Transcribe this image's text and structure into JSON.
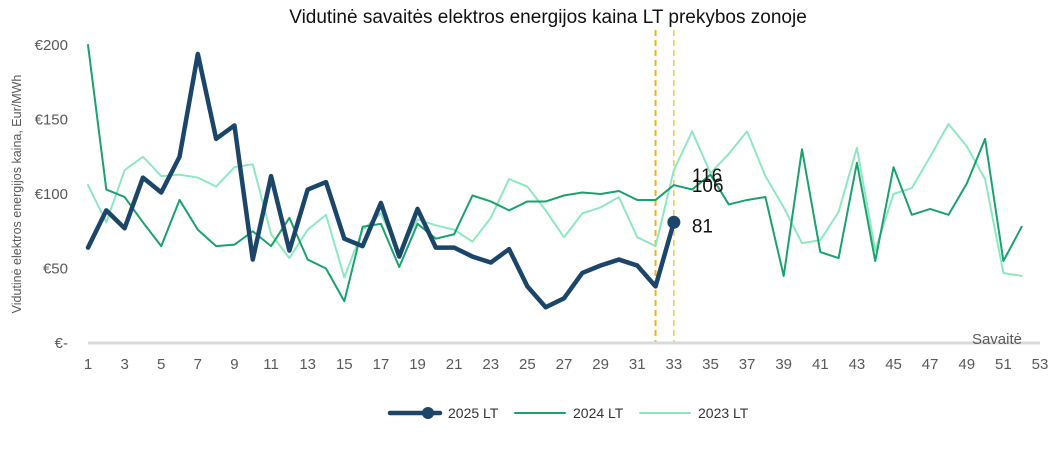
{
  "chart_data": {
    "type": "line",
    "title": "Vidutinė savaitės elektros energijos kaina LT prekybos zonoje",
    "ylabel": "Vidutinė elektros energijos kaina, Eur/MWh",
    "xlabel": "Savaitė",
    "ylim": [
      0,
      200
    ],
    "xlim": [
      1,
      53
    ],
    "y_ticks": [
      "€-",
      "€50",
      "€100",
      "€150",
      "€200"
    ],
    "y_tick_values": [
      0,
      50,
      100,
      150,
      200
    ],
    "x_ticks": [
      "1",
      "3",
      "5",
      "7",
      "9",
      "11",
      "13",
      "15",
      "17",
      "19",
      "21",
      "23",
      "25",
      "27",
      "29",
      "31",
      "33",
      "35",
      "37",
      "39",
      "41",
      "43",
      "45",
      "47",
      "49",
      "51",
      "53"
    ],
    "x_tick_values": [
      1,
      3,
      5,
      7,
      9,
      11,
      13,
      15,
      17,
      19,
      21,
      23,
      25,
      27,
      29,
      31,
      33,
      35,
      37,
      39,
      41,
      43,
      45,
      47,
      49,
      51,
      53
    ],
    "grid": false,
    "legend_position": "bottom",
    "vertical_markers": [
      32,
      33
    ],
    "series": [
      {
        "name": "2025 LT",
        "color": "#1b4569",
        "x": [
          1,
          2,
          3,
          4,
          5,
          6,
          7,
          8,
          9,
          10,
          11,
          12,
          13,
          14,
          15,
          16,
          17,
          18,
          19,
          20,
          21,
          22,
          23,
          24,
          25,
          26,
          27,
          28,
          29,
          30,
          31,
          32,
          33
        ],
        "values": [
          64,
          89,
          77,
          111,
          101,
          125,
          194,
          137,
          146,
          56,
          112,
          62,
          103,
          108,
          70,
          65,
          94,
          58,
          90,
          64,
          64,
          58,
          54,
          63,
          38,
          24,
          30,
          47,
          52,
          56,
          52,
          38,
          81
        ],
        "end_label": "81"
      },
      {
        "name": "2024 LT",
        "color": "#1aa26d",
        "x": [
          1,
          2,
          3,
          4,
          5,
          6,
          7,
          8,
          9,
          10,
          11,
          12,
          13,
          14,
          15,
          16,
          17,
          18,
          19,
          20,
          21,
          22,
          23,
          24,
          25,
          26,
          27,
          28,
          29,
          30,
          31,
          32,
          33,
          34,
          35,
          36,
          37,
          38,
          39,
          40,
          41,
          42,
          43,
          44,
          45,
          46,
          47,
          48,
          49,
          50,
          51,
          52
        ],
        "values": [
          200,
          103,
          98,
          81,
          65,
          96,
          76,
          65,
          66,
          75,
          65,
          84,
          56,
          50,
          28,
          78,
          80,
          51,
          80,
          70,
          73,
          99,
          95,
          89,
          95,
          95,
          99,
          101,
          100,
          102,
          96,
          96,
          106,
          103,
          113,
          93,
          96,
          98,
          45,
          130,
          61,
          57,
          121,
          55,
          118,
          86,
          90,
          86,
          107,
          137,
          55,
          78
        ],
        "end_label": "106"
      },
      {
        "name": "2023 LT",
        "color": "#8de8c2",
        "x": [
          1,
          2,
          3,
          4,
          5,
          6,
          7,
          8,
          9,
          10,
          11,
          12,
          13,
          14,
          15,
          16,
          17,
          18,
          19,
          20,
          21,
          22,
          23,
          24,
          25,
          26,
          27,
          28,
          29,
          30,
          31,
          32,
          33,
          34,
          35,
          36,
          37,
          38,
          39,
          40,
          41,
          42,
          43,
          44,
          45,
          46,
          47,
          48,
          49,
          50,
          51,
          52
        ],
        "values": [
          106,
          81,
          116,
          125,
          112,
          113,
          111,
          105,
          118,
          120,
          73,
          57,
          76,
          86,
          44,
          76,
          87,
          60,
          83,
          79,
          76,
          68,
          84,
          110,
          105,
          89,
          71,
          87,
          91,
          98,
          71,
          65,
          116,
          142,
          114,
          127,
          142,
          112,
          91,
          67,
          69,
          88,
          131,
          62,
          100,
          104,
          125,
          147,
          132,
          110,
          47,
          45
        ],
        "end_label": "116"
      }
    ]
  }
}
